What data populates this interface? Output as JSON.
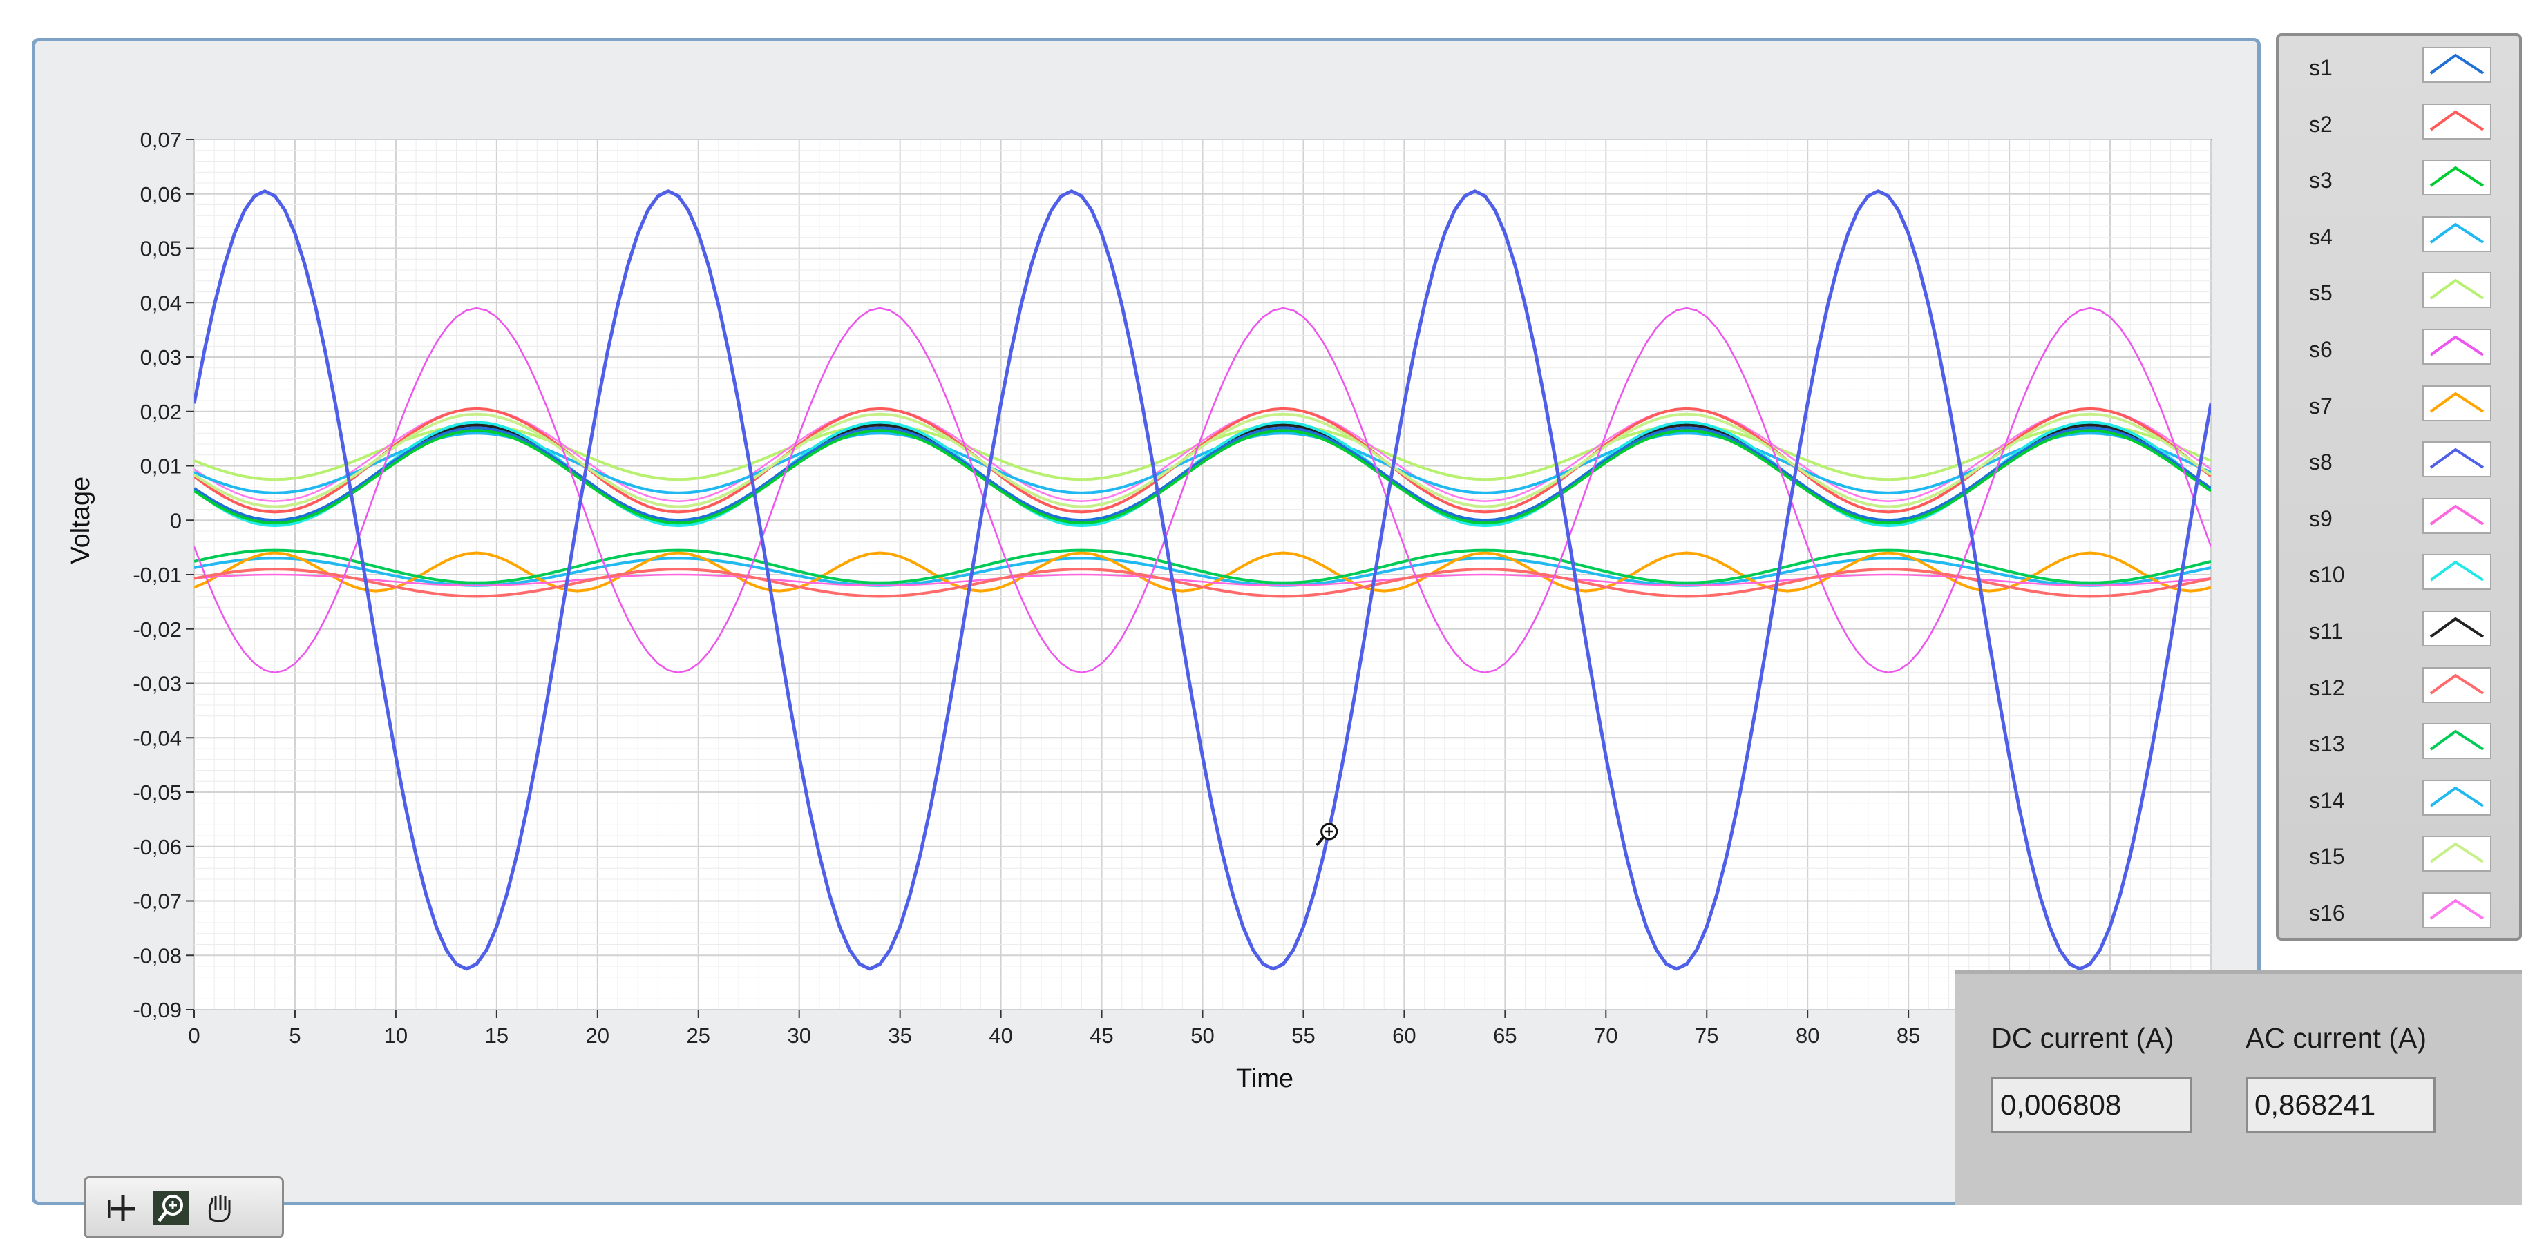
{
  "graph": {
    "xlabel": "Time",
    "ylabel": "Voltage",
    "xticks": [
      "0",
      "5",
      "10",
      "15",
      "20",
      "25",
      "30",
      "35",
      "40",
      "45",
      "50",
      "55",
      "60",
      "65",
      "70",
      "75",
      "80",
      "85"
    ],
    "yticks": [
      "0,07",
      "0,06",
      "0,05",
      "0,04",
      "0,03",
      "0,02",
      "0,01",
      "0",
      "-0,01",
      "-0,02",
      "-0,03",
      "-0,04",
      "-0,05",
      "-0,06",
      "-0,07",
      "-0,08",
      "-0,09"
    ]
  },
  "legend": {
    "items": [
      {
        "label": "s1",
        "color": "#1f6fd6"
      },
      {
        "label": "s2",
        "color": "#ff5a5a"
      },
      {
        "label": "s3",
        "color": "#00cc33"
      },
      {
        "label": "s4",
        "color": "#1fb8f0"
      },
      {
        "label": "s5",
        "color": "#b8f070"
      },
      {
        "label": "s6",
        "color": "#ee55ee"
      },
      {
        "label": "s7",
        "color": "#ffa500"
      },
      {
        "label": "s8",
        "color": "#4f5fe8"
      },
      {
        "label": "s9",
        "color": "#ff66dd"
      },
      {
        "label": "s10",
        "color": "#22e8e8"
      },
      {
        "label": "s11",
        "color": "#222222"
      },
      {
        "label": "s12",
        "color": "#ff6a6a"
      },
      {
        "label": "s13",
        "color": "#00cc55"
      },
      {
        "label": "s14",
        "color": "#22b8f0"
      },
      {
        "label": "s15",
        "color": "#c8f08a"
      },
      {
        "label": "s16",
        "color": "#ff77ee"
      }
    ]
  },
  "current": {
    "dc_label": "DC current (A)",
    "dc_value": "0,006808",
    "ac_label": "AC current (A)",
    "ac_value": "0,868241"
  },
  "tools": [
    "cursor-tool-icon",
    "zoom-tool-icon",
    "pan-hand-icon"
  ],
  "chart_data": {
    "type": "line",
    "xlabel": "Time",
    "ylabel": "Voltage",
    "xlim": [
      0,
      100
    ],
    "ylim": [
      -0.09,
      0.07
    ],
    "grid": true,
    "legend_placement": "right",
    "period": 20,
    "series": [
      {
        "name": "s1",
        "color": "#1f6fd6",
        "offset": 0.0085,
        "amplitude": 0.0085,
        "peak_at": 14
      },
      {
        "name": "s2",
        "color": "#ff5a5a",
        "offset": 0.011,
        "amplitude": 0.0095,
        "peak_at": 14
      },
      {
        "name": "s3",
        "color": "#00cc33",
        "offset": 0.008,
        "amplitude": 0.0085,
        "peak_at": 14
      },
      {
        "name": "s4",
        "color": "#1fb8f0",
        "offset": 0.0105,
        "amplitude": 0.0055,
        "peak_at": 14
      },
      {
        "name": "s5",
        "color": "#b8f070",
        "offset": 0.0125,
        "amplitude": 0.005,
        "peak_at": 14
      },
      {
        "name": "s6",
        "color": "#ee55ee",
        "offset": 0.0055,
        "amplitude": 0.0335,
        "peak_at": 14
      },
      {
        "name": "s7",
        "color": "#ffa500",
        "offset": -0.0095,
        "amplitude": 0.0035,
        "peak_at": 4,
        "harmonic": 2
      },
      {
        "name": "s8",
        "color": "#4f5fe8",
        "offset": -0.011,
        "amplitude": 0.0715,
        "peak_at": 3.5
      },
      {
        "name": "s9",
        "color": "#ff66dd",
        "offset": -0.011,
        "amplitude": 0.001,
        "peak_at": 4
      },
      {
        "name": "s10",
        "color": "#22e8e8",
        "offset": 0.0085,
        "amplitude": 0.0095,
        "peak_at": 14
      },
      {
        "name": "s11",
        "color": "#222222",
        "offset": 0.0085,
        "amplitude": 0.009,
        "peak_at": 14
      },
      {
        "name": "s12",
        "color": "#ff6a6a",
        "offset": -0.0115,
        "amplitude": 0.0025,
        "peak_at": 4
      },
      {
        "name": "s13",
        "color": "#00cc55",
        "offset": -0.0085,
        "amplitude": 0.003,
        "peak_at": 4
      },
      {
        "name": "s14",
        "color": "#22b8f0",
        "offset": -0.0095,
        "amplitude": 0.0025,
        "peak_at": 4
      },
      {
        "name": "s15",
        "color": "#c8f08a",
        "offset": 0.011,
        "amplitude": 0.0085,
        "peak_at": 14
      },
      {
        "name": "s16",
        "color": "#ff77ee",
        "offset": 0.012,
        "amplitude": 0.0085,
        "peak_at": 14
      }
    ]
  }
}
